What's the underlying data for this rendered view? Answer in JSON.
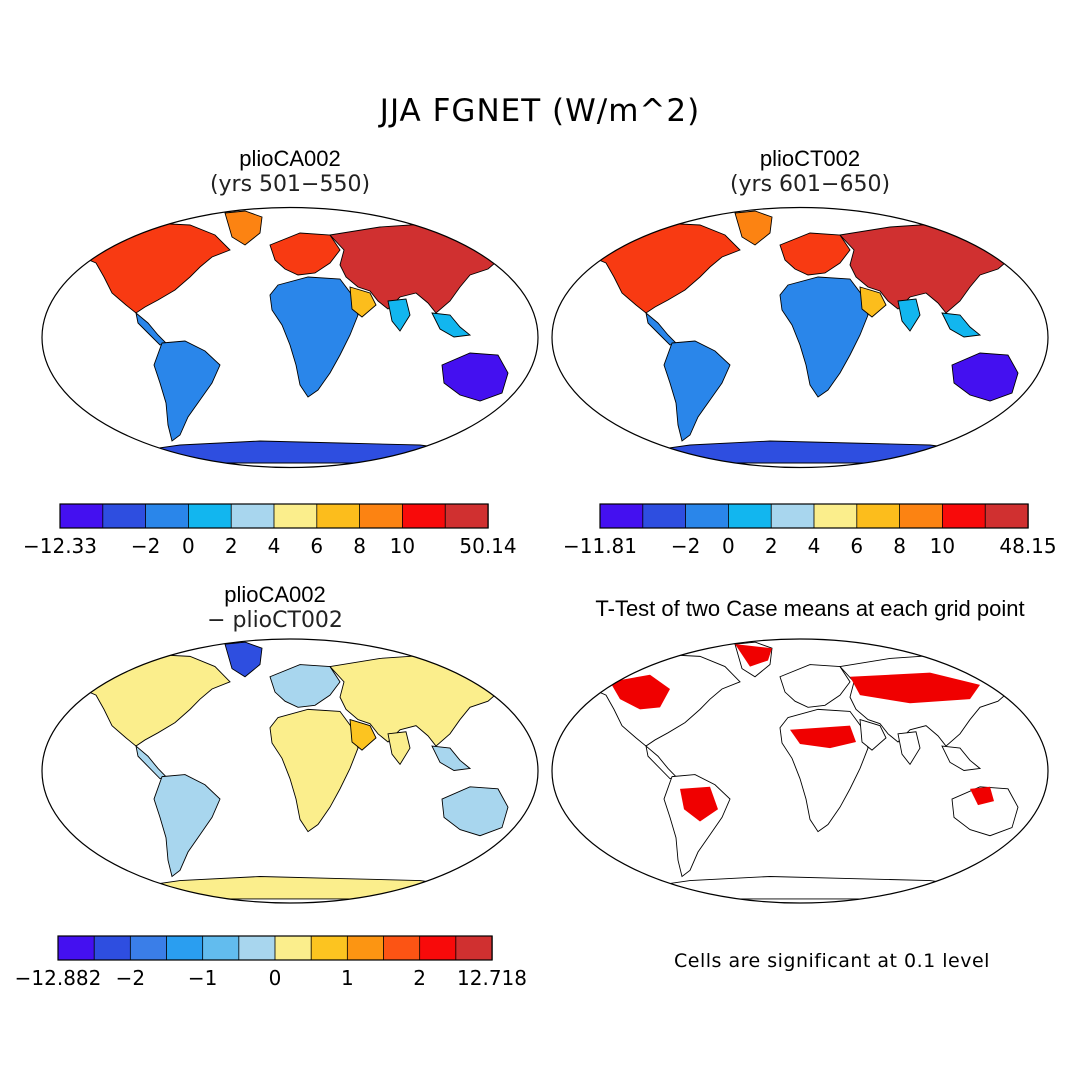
{
  "title": "JJA FGNET (W/m^2)",
  "panels": [
    {
      "id": "ca",
      "title_line1": "plioCA002",
      "title_line2": "(yrs 501−550)",
      "colorbar": {
        "colors": [
          "#4410f0",
          "#2e4ee0",
          "#2a86ea",
          "#12b6ef",
          "#a8d6ee",
          "#fbee8c",
          "#fcbd1c",
          "#fc8312",
          "#f80a0a",
          "#d03030"
        ],
        "labels": [
          "−12.33",
          "−2",
          "0",
          "2",
          "4",
          "6",
          "8",
          "10",
          "50.14"
        ]
      }
    },
    {
      "id": "ct",
      "title_line1": "plioCT002",
      "title_line2": "(yrs 601−650)",
      "colorbar": {
        "colors": [
          "#4410f0",
          "#2e4ee0",
          "#2a86ea",
          "#12b6ef",
          "#a8d6ee",
          "#fbee8c",
          "#fcbd1c",
          "#fc8312",
          "#f80a0a",
          "#d03030"
        ],
        "labels": [
          "−11.81",
          "−2",
          "0",
          "2",
          "4",
          "6",
          "8",
          "10",
          "48.15"
        ]
      }
    },
    {
      "id": "diff",
      "title_line1": "plioCA002",
      "title_line2": "− plioCT002",
      "colorbar": {
        "colors": [
          "#4410f0",
          "#2e4ee0",
          "#3a7ee8",
          "#2a9ef0",
          "#62bcee",
          "#a8d6ee",
          "#fbee8c",
          "#fcc420",
          "#fc9512",
          "#fc5414",
          "#f80a0a",
          "#d03030"
        ],
        "labels": [
          "−12.882",
          "−2",
          "−1",
          "0",
          "1",
          "2",
          "12.718"
        ]
      }
    },
    {
      "id": "ttest",
      "title_line1": "T-Test of two Case means at each grid point",
      "note": "Cells are significant at 0.1 level",
      "significance_color": "#f00000"
    }
  ]
}
